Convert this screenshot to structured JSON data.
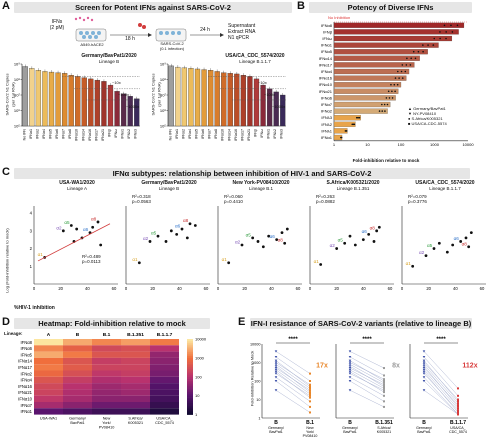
{
  "panelA": {
    "letter": "A",
    "banner": "Screen for Potent IFNs against SARS-CoV-2",
    "schematic": {
      "ifn_label": "IFNs\n(2 pM)",
      "cell_label": "A549-hACE2",
      "step1": "18 h",
      "virus_label": "SARS-CoV-2\n(0.1 infection)",
      "step2": "24 h",
      "readout": "Supernatant\nExtract RNA\nN1 qPCR"
    },
    "left_chart": {
      "title": "Germany/BavPat1/2020",
      "subtitle": "Lineage B",
      "ylabel": "SARS-CoV2 N1 Copies",
      "ylabel2": "(per 1µl RNA)",
      "yticks": [
        "10⁵",
        "10⁶",
        "10⁷",
        "10⁸",
        "10⁹"
      ],
      "annotations": [
        "~10x",
        "~100x",
        "~1000x"
      ]
    },
    "right_chart": {
      "title": "USA/CA_CDC_5574/2020",
      "subtitle": "Lineage B.1.1.7",
      "ylabel": "SARS-CoV2 N1 Copies",
      "ylabel2": "(per 1µl RNA)",
      "yticks": [
        "10⁵",
        "10⁶",
        "10⁷",
        "10⁸",
        "10⁹"
      ],
      "annotations": [
        "~10x",
        "~100x",
        "~1000x"
      ]
    },
    "categories": [
      "No IFN",
      "IFNα1",
      "IFNα2",
      "IFNα4",
      "IFNα5",
      "IFNα6",
      "IFNα7",
      "IFNα8",
      "IFNα10",
      "IFNα14",
      "IFNα16",
      "IFNα17",
      "IFNα21",
      "IFNβ",
      "IFNω",
      "IFNλ1",
      "IFNλ2",
      "IFNλ3"
    ],
    "colors": [
      "#9e9e9e",
      "#f2d28c",
      "#f0c870",
      "#ecbb5a",
      "#e8ac48",
      "#e39c3a",
      "#de8c31",
      "#d87c2b",
      "#d06c28",
      "#c65c27",
      "#bb4d27",
      "#ae4029",
      "#9f342b",
      "#b03a3a",
      "#8a2a3a",
      "#5a2a4a",
      "#4a2a52",
      "#3a2a5a"
    ]
  },
  "panelB": {
    "letter": "B",
    "banner": "Potency of Diverse IFNs",
    "no_inhibition": "No Inhibition",
    "xlabel": "Fold-inhibition relative to mock",
    "xticks": [
      "1",
      "10",
      "100",
      "1000",
      "10000"
    ],
    "rows": [
      "IFNα8",
      "IFNβ",
      "IFNω",
      "IFNα1",
      "IFNα5",
      "IFNα14",
      "IFNα17",
      "IFNα4",
      "IFNα16",
      "IFNα10",
      "IFNα21",
      "IFNα6",
      "IFNα7",
      "IFNα2",
      "IFNλ3",
      "IFNλ2",
      "IFNλ1",
      "IFNα1"
    ],
    "legend": [
      "Germany/BavPat1",
      "NY-PV08410",
      "S.Africa/K005321",
      "USA/CA-CDC-5574"
    ]
  },
  "panelC": {
    "letter": "C",
    "banner": "IFNα subtypes: relationship between inhibition of HIV-1 and SARS-CoV-2",
    "ylabel": "Log (Fold-inhibition relative to mock)",
    "xlabel": "%HIV-1 inhibition",
    "xticks": [
      "0",
      "20",
      "40",
      "60"
    ],
    "yticks": [
      "1",
      "2",
      "3",
      "4"
    ],
    "plots": [
      {
        "title": "USA-WA1/2020",
        "subtitle": "Lineage A",
        "r2": "R²=0.489",
        "p": "p=0.0113"
      },
      {
        "title": "Germany/BavPat1/2020",
        "subtitle": "Lineage B",
        "r2": "R²=0.318",
        "p": "p=0.0563"
      },
      {
        "title": "New York-PV08410/2020",
        "subtitle": "Lineage B.1",
        "r2": "R²=0.060",
        "p": "p=0.4410"
      },
      {
        "title": "S.Africa/K005321/2020",
        "subtitle": "Lineage B.1.351",
        "r2": "R²=0.263",
        "p": "p=0.0882"
      },
      {
        "title": "USA/CA_CDC_5574/2020",
        "subtitle": "Lineage B.1.1.7",
        "r2": "R²=0.079",
        "p": "p=0.3776"
      }
    ],
    "point_labels": [
      "α1",
      "α2",
      "α5",
      "α6",
      "α8"
    ]
  },
  "panelD": {
    "letter": "D",
    "banner": "Heatmap: Fold-inhibition relative to mock",
    "lineage_label": "Lineage:",
    "columns_lineage": [
      "A",
      "B",
      "B.1",
      "B.1.351",
      "B.1.1.7"
    ],
    "columns": [
      "USA-WA1",
      "Germany/ BavPat1",
      "New York/ PV08410",
      "S.Africa/ K005321",
      "USA/CA_ CDC_5574"
    ],
    "rows": [
      "IFNα8",
      "IFNα6",
      "IFNα5",
      "IFNα14",
      "IFNα17",
      "IFNα2",
      "IFNα4",
      "IFNα16",
      "IFNα21",
      "IFNα10",
      "IFNα7",
      "IFNα1"
    ],
    "scale_ticks": [
      "10000",
      "1000",
      "100",
      "10",
      "1"
    ],
    "values": [
      [
        4.0,
        3.5,
        3.2,
        3.4,
        3.1
      ],
      [
        3.2,
        2.8,
        2.4,
        2.5,
        2.0
      ],
      [
        3.5,
        3.1,
        2.6,
        2.6,
        1.6
      ],
      [
        3.0,
        2.6,
        2.2,
        2.3,
        1.5
      ],
      [
        3.1,
        2.7,
        2.3,
        2.3,
        1.4
      ],
      [
        2.9,
        2.5,
        2.1,
        2.2,
        1.3
      ],
      [
        2.6,
        2.2,
        1.9,
        2.0,
        1.1
      ],
      [
        2.4,
        2.0,
        1.7,
        1.8,
        0.9
      ],
      [
        2.3,
        1.9,
        1.6,
        1.7,
        0.8
      ],
      [
        2.1,
        1.8,
        1.5,
        1.5,
        0.7
      ],
      [
        1.8,
        1.5,
        1.2,
        1.2,
        0.5
      ],
      [
        1.0,
        0.8,
        0.6,
        0.6,
        0.2
      ]
    ]
  },
  "panelE": {
    "letter": "E",
    "banner": "IFN-I resistance of SARS-CoV-2 variants (relative to lineage B)",
    "ylabel": "Fold-inhibition Relative to Mock",
    "yticks": [
      "1",
      "10",
      "100",
      "1000",
      "10000"
    ],
    "significance": "****",
    "plots": [
      {
        "left": "B",
        "right": "B.1",
        "left_sub": "Germany/ BavPat1",
        "right_sub": "New York/ PV08410",
        "fold": "17x",
        "color": "#e8862a"
      },
      {
        "left": "B",
        "right": "B.1.351",
        "left_sub": "Germany/ BavPat1",
        "right_sub": "S.Africa/ K005321",
        "fold": "8x",
        "color": "#9a9a9a"
      },
      {
        "left": "B",
        "right": "B.1.1.7",
        "left_sub": "Germany/ BavPat1",
        "right_sub": "USA/CA_ CDC_5574",
        "fold": "112x",
        "color": "#d83a3a"
      }
    ]
  }
}
